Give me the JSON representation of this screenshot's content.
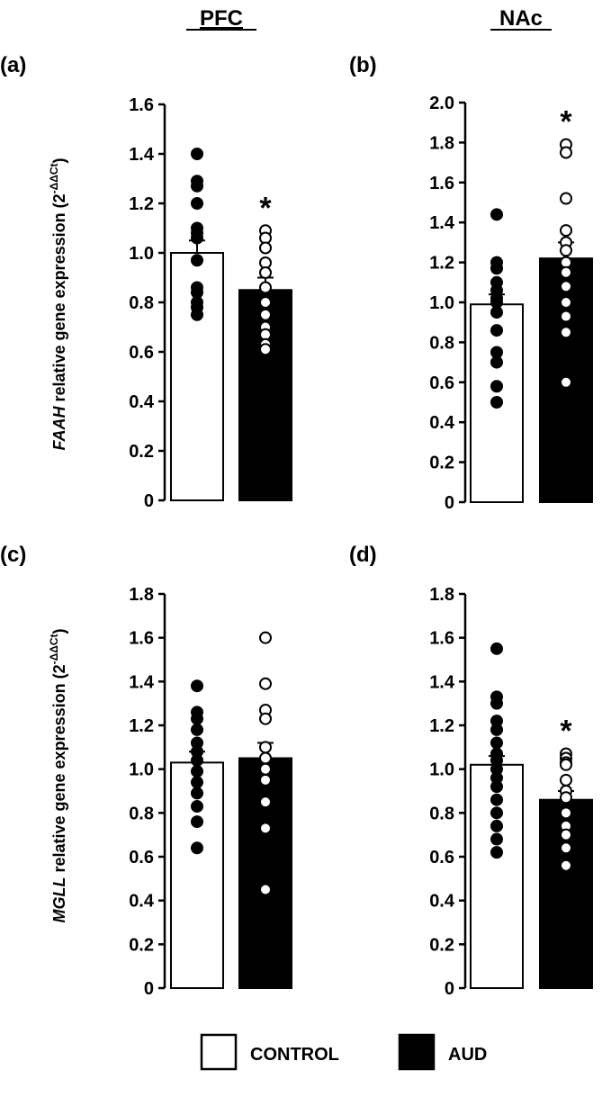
{
  "columns": {
    "left": "PFC",
    "right": "NAc"
  },
  "ylabels": {
    "top": {
      "gene": "FAAH",
      "rest": " relative gene expression (2",
      "sup": "-ΔΔCt",
      "close": ")"
    },
    "bottom": {
      "gene": "MGLL",
      "rest": " relative gene expression (2",
      "sup": "-ΔΔCt",
      "close": ")"
    }
  },
  "legend": {
    "control": {
      "label": "CONTROL",
      "color": "#ffffff"
    },
    "aud": {
      "label": "AUD",
      "color": "#000000"
    }
  },
  "chart_data": [
    {
      "panel": "(a)",
      "type": "bar",
      "region": "PFC",
      "gene": "FAAH",
      "categories": [
        "CONTROL",
        "AUD"
      ],
      "ylim": [
        0,
        1.6
      ],
      "yticks": [
        "0",
        "0.2",
        "0.4",
        "0.6",
        "0.8",
        "1.0",
        "1.2",
        "1.4",
        "1.6"
      ],
      "means": [
        1.0,
        0.85
      ],
      "sem": [
        0.05,
        0.05
      ],
      "points": [
        [
          1.4,
          1.29,
          1.27,
          1.2,
          1.1,
          1.08,
          1.06,
          0.97,
          0.86,
          0.84,
          0.8,
          0.78,
          0.75
        ],
        [
          1.09,
          1.06,
          1.02,
          0.96,
          0.92,
          0.86,
          0.8,
          0.75,
          0.7,
          0.67,
          0.63,
          0.61
        ]
      ],
      "significance": "*"
    },
    {
      "panel": "(b)",
      "type": "bar",
      "region": "NAc",
      "gene": "FAAH",
      "categories": [
        "CONTROL",
        "AUD"
      ],
      "ylim": [
        0,
        2.0
      ],
      "yticks": [
        "0",
        "0.2",
        "0.4",
        "0.6",
        "0.8",
        "1.0",
        "1.2",
        "1.4",
        "1.6",
        "1.8",
        "2.0"
      ],
      "means": [
        0.99,
        1.22
      ],
      "sem": [
        0.05,
        0.08
      ],
      "points": [
        [
          1.44,
          1.2,
          1.17,
          1.1,
          1.06,
          1.02,
          1.0,
          0.95,
          0.86,
          0.75,
          0.7,
          0.58,
          0.5
        ],
        [
          1.79,
          1.75,
          1.52,
          1.36,
          1.3,
          1.26,
          1.2,
          1.15,
          1.08,
          1.0,
          0.93,
          0.85,
          0.6
        ]
      ],
      "significance": "*"
    },
    {
      "panel": "(c)",
      "type": "bar",
      "region": "PFC",
      "gene": "MGLL",
      "categories": [
        "CONTROL",
        "AUD"
      ],
      "ylim": [
        0,
        1.8
      ],
      "yticks": [
        "0",
        "0.2",
        "0.4",
        "0.6",
        "0.8",
        "1.0",
        "1.2",
        "1.4",
        "1.6",
        "1.8"
      ],
      "means": [
        1.03,
        1.05
      ],
      "sem": [
        0.05,
        0.07
      ],
      "points": [
        [
          1.38,
          1.26,
          1.23,
          1.18,
          1.12,
          1.08,
          1.04,
          0.99,
          0.94,
          0.89,
          0.83,
          0.76,
          0.64
        ],
        [
          1.6,
          1.39,
          1.27,
          1.23,
          1.1,
          1.05,
          1.0,
          0.95,
          0.85,
          0.73,
          0.45
        ]
      ],
      "significance": ""
    },
    {
      "panel": "(d)",
      "type": "bar",
      "region": "NAc",
      "gene": "MGLL",
      "categories": [
        "CONTROL",
        "AUD"
      ],
      "ylim": [
        0,
        1.8
      ],
      "yticks": [
        "0",
        "0.2",
        "0.4",
        "0.6",
        "0.8",
        "1.0",
        "1.2",
        "1.4",
        "1.6",
        "1.8"
      ],
      "means": [
        1.02,
        0.86
      ],
      "sem": [
        0.04,
        0.04
      ],
      "points": [
        [
          1.55,
          1.33,
          1.3,
          1.22,
          1.18,
          1.12,
          1.07,
          1.04,
          1.0,
          0.96,
          0.92,
          0.86,
          0.8,
          0.74,
          0.68,
          0.62
        ],
        [
          1.07,
          1.05,
          1.03,
          1.02,
          0.95,
          0.9,
          0.87,
          0.8,
          0.74,
          0.7,
          0.64,
          0.56
        ]
      ],
      "significance": "*"
    }
  ]
}
